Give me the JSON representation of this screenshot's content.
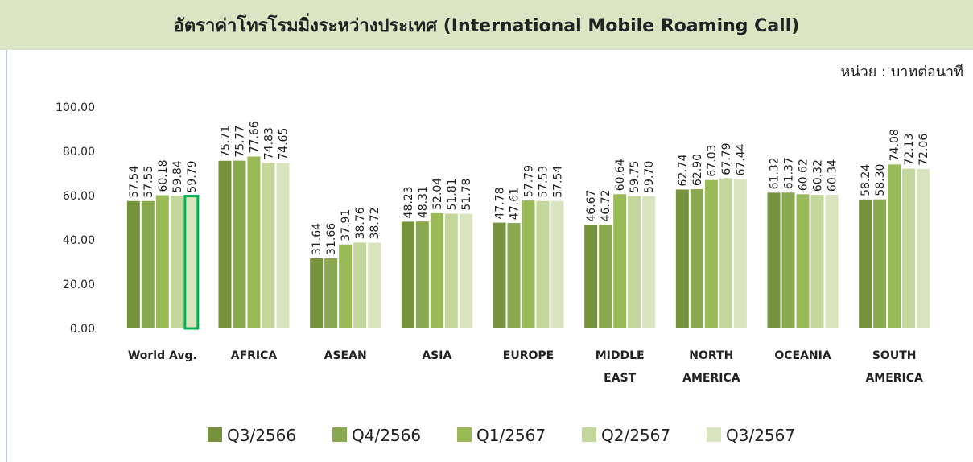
{
  "chart_data": {
    "type": "bar",
    "title": "อัตราค่าโทรโรมมิ่งระหว่างประเทศ (International Mobile Roaming Call)",
    "unit": "หน่วย : บาทต่อนาที",
    "categories": [
      "World Avg.",
      "AFRICA",
      "ASEAN",
      "ASIA",
      "EUROPE",
      "MIDDLE EAST",
      "NORTH AMERICA",
      "OCEANIA",
      "SOUTH AMERICA"
    ],
    "series": [
      {
        "name": "Q3/2566",
        "color": "#76923c",
        "values": [
          57.54,
          75.71,
          31.64,
          48.23,
          47.78,
          46.67,
          62.74,
          61.32,
          58.24
        ],
        "value_labels": [
          "57.54",
          "75.71",
          "31.64",
          "48.23",
          "47.78",
          "46.67",
          "62.74",
          "61.32",
          "58.24"
        ]
      },
      {
        "name": "Q4/2566",
        "color": "#8aa84f",
        "values": [
          57.55,
          75.77,
          31.66,
          48.31,
          47.61,
          46.72,
          62.9,
          61.37,
          58.3
        ],
        "value_labels": [
          "57.55",
          "75.77",
          "31.66",
          "48.31",
          "47.61",
          "46.72",
          "62.90",
          "61.37",
          "58.30"
        ]
      },
      {
        "name": "Q1/2567",
        "color": "#9bbb59",
        "values": [
          60.18,
          77.66,
          37.91,
          52.04,
          57.79,
          60.64,
          67.03,
          60.62,
          74.08
        ],
        "value_labels": [
          "60.18",
          "77.66",
          "37.91",
          "52.04",
          "57.79",
          "60.64",
          "67.03",
          "60.62",
          "74.08"
        ]
      },
      {
        "name": "Q2/2567",
        "color": "#c3d69b",
        "values": [
          59.84,
          74.83,
          38.76,
          51.81,
          57.53,
          59.75,
          67.79,
          60.32,
          72.13
        ],
        "value_labels": [
          "59.84",
          "74.83",
          "38.76",
          "51.81",
          "57.53",
          "59.75",
          "67.79",
          "60.32",
          "72.13"
        ]
      },
      {
        "name": "Q3/2567",
        "color": "#d7e4bd",
        "values": [
          59.79,
          74.65,
          38.72,
          51.78,
          57.54,
          59.7,
          67.44,
          60.34,
          72.06
        ],
        "value_labels": [
          "59.79",
          "74.65",
          "38.72",
          "51.78",
          "57.54",
          "59.70",
          "67.44",
          "60.34",
          "72.06"
        ]
      }
    ],
    "ylim": [
      0,
      100
    ],
    "yticks": [
      {
        "value": 0,
        "label": "0.00"
      },
      {
        "value": 20,
        "label": "20.00"
      },
      {
        "value": 40,
        "label": "40.00"
      },
      {
        "value": 60,
        "label": "60.00"
      },
      {
        "value": 80,
        "label": "80.00"
      },
      {
        "value": 100,
        "label": "100.00"
      }
    ],
    "grid": false,
    "legend": "bottom"
  }
}
